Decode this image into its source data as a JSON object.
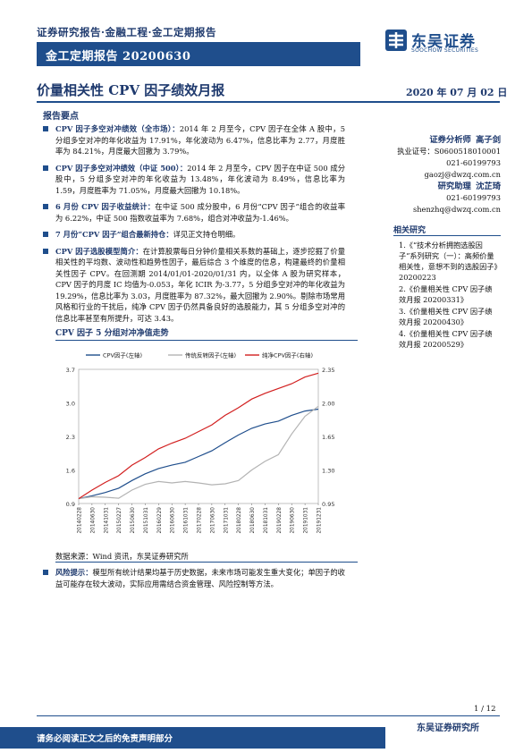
{
  "header": {
    "series_line": "证券研究报告·金融工程·金工定期报告",
    "report_id": "金工定期报告 20200630",
    "logo_cn": "东吴证券",
    "logo_en": "SOOCHOW SECURITIES"
  },
  "title": "价量相关性 CPV 因子绩效月报",
  "date": "2020 年 07 月 02 日",
  "section_heading": "报告要点",
  "paragraphs": [
    {
      "lead": "CPV 因子多空对冲绩效（全市场）：",
      "text": "2014 年 2 月至今，CPV 因子在全体 A 股中，5 分组多空对冲的年化收益为 17.91%，年化波动为 6.47%，信息比率为 2.77，月度胜率为 84.21%，月度最大回撤为 3.79%。"
    },
    {
      "lead": "CPV 因子多空对冲绩效（中证 500）：",
      "text": "2014 年 2 月至今，CPV 因子在中证 500 成分股中，5 分组多空对冲的年化收益为 13.48%，年化波动为 8.49%，信息比率为 1.59，月度胜率为 71.05%，月度最大回撤为 10.18%。"
    },
    {
      "lead": "6 月份 CPV 因子收益统计：",
      "text": "在中证 500 成分股中，6 月份“CPV 因子”组合的收益率为 6.22%，中证 500 指数收益率为 7.68%，组合对冲收益为-1.46%。"
    },
    {
      "lead": "7 月份“CPV 因子”组合最新持仓：",
      "text": "详见正文持仓明细。"
    },
    {
      "lead": "CPV 因子选股模型简介：",
      "text": "在计算股票每日分钟价量相关系数的基础上，逐步挖掘了价量相关性的平均数、波动性和趋势性因子，最后综合 3 个维度的信息，构建最终的价量相关性因子 CPV。在回测期 2014/01/01-2020/01/31 内，以全体 A 股为研究样本，CPV 因子的月度 IC 均值为-0.053，年化 ICIR 为-3.77，5 分组多空对冲的年化收益为 19.29%，信息比率为 3.03，月度胜率为 87.32%，最大回撤为 2.90%。剔除市场常用风格和行业的干扰后，纯净 CPV 因子仍然具备良好的选股能力，其 5 分组多空对冲的信息比率甚至有所提升，可达 3.43。"
    }
  ],
  "sidebar": {
    "analyst_title": "证券分析师",
    "analyst_name": "高子剑",
    "license": "执业证号：S0600518010001",
    "analyst_phone": "021-60199793",
    "analyst_email": "gaozj@dwzq.com.cn",
    "assistant_title": "研究助理",
    "assistant_name": "沈芷琦",
    "assistant_phone": "021-60199793",
    "assistant_email": "shenzhq@dwzq.com.cn"
  },
  "related": {
    "heading": "相关研究",
    "items": [
      "1.《“技术分析拥抱选股因子”系列研究（一）：高频价量相关性，意想不到的选股因子》20200223",
      "2.《价量相关性 CPV 因子绩效月报 20200331》",
      "3.《价量相关性 CPV 因子绩效月报 20200430》",
      "4.《价量相关性 CPV 因子绩效月报 20200529》"
    ]
  },
  "chart_title": "CPV 因子 5 分组对冲净值走势",
  "source": "数据来源：Wind 资讯，东吴证券研究所",
  "risk": {
    "lead": "风险提示：",
    "text": "模型所有统计结果均基于历史数据，未来市场可能发生重大变化；单因子的收益可能存在较大波动，实际应用需结合资金管理、风险控制等方法。"
  },
  "page_number": "1 / 12",
  "footer": {
    "institute": "东吴证券研究所",
    "disclaimer": "请务必阅读正文之后的免责声明部分"
  },
  "colors": {
    "navy": "#1f4e8c",
    "cpv": "#1f4e8c",
    "traditional": "#b3b3b3",
    "pure": "#d21f1f"
  },
  "chart_data": {
    "type": "line",
    "title": "CPV 因子 5 分组对冲净值走势",
    "x": [
      "20140228",
      "20140630",
      "20141031",
      "20150227",
      "20150630",
      "20151031",
      "20160229",
      "20160630",
      "20161031",
      "20170228",
      "20170630",
      "20171031",
      "20180228",
      "20180630",
      "20181031",
      "20190228",
      "20190630",
      "20191031",
      "20191231"
    ],
    "yleft": {
      "ticks": [
        "0.9",
        "1.6",
        "2.3",
        "3.0",
        "3.7"
      ],
      "lim": [
        0.9,
        3.7
      ]
    },
    "yright": {
      "ticks": [
        "0.95",
        "1.30",
        "1.65",
        "2.00",
        "2.35"
      ],
      "lim": [
        0.95,
        2.35
      ]
    },
    "legend": [
      "CPV因子(左轴)",
      "传统反转因子(左轴)",
      "纯净CPV因子(右轴)"
    ],
    "legend_position": "top",
    "series": [
      {
        "name": "CPV因子(左轴)",
        "axis": "left",
        "values": [
          1.0,
          1.06,
          1.13,
          1.22,
          1.38,
          1.52,
          1.63,
          1.7,
          1.76,
          1.88,
          2.0,
          2.17,
          2.33,
          2.47,
          2.56,
          2.62,
          2.74,
          2.83,
          2.87
        ]
      },
      {
        "name": "传统反转因子(左轴)",
        "axis": "left",
        "values": [
          1.0,
          1.04,
          1.03,
          1.01,
          1.18,
          1.3,
          1.36,
          1.33,
          1.36,
          1.33,
          1.29,
          1.31,
          1.38,
          1.6,
          1.78,
          1.92,
          2.35,
          2.72,
          2.93
        ]
      },
      {
        "name": "纯净CPV因子(右轴)",
        "axis": "right",
        "values": [
          1.0,
          1.09,
          1.17,
          1.24,
          1.35,
          1.43,
          1.52,
          1.58,
          1.63,
          1.7,
          1.77,
          1.87,
          1.95,
          2.04,
          2.1,
          2.15,
          2.2,
          2.27,
          2.31
        ]
      }
    ]
  }
}
